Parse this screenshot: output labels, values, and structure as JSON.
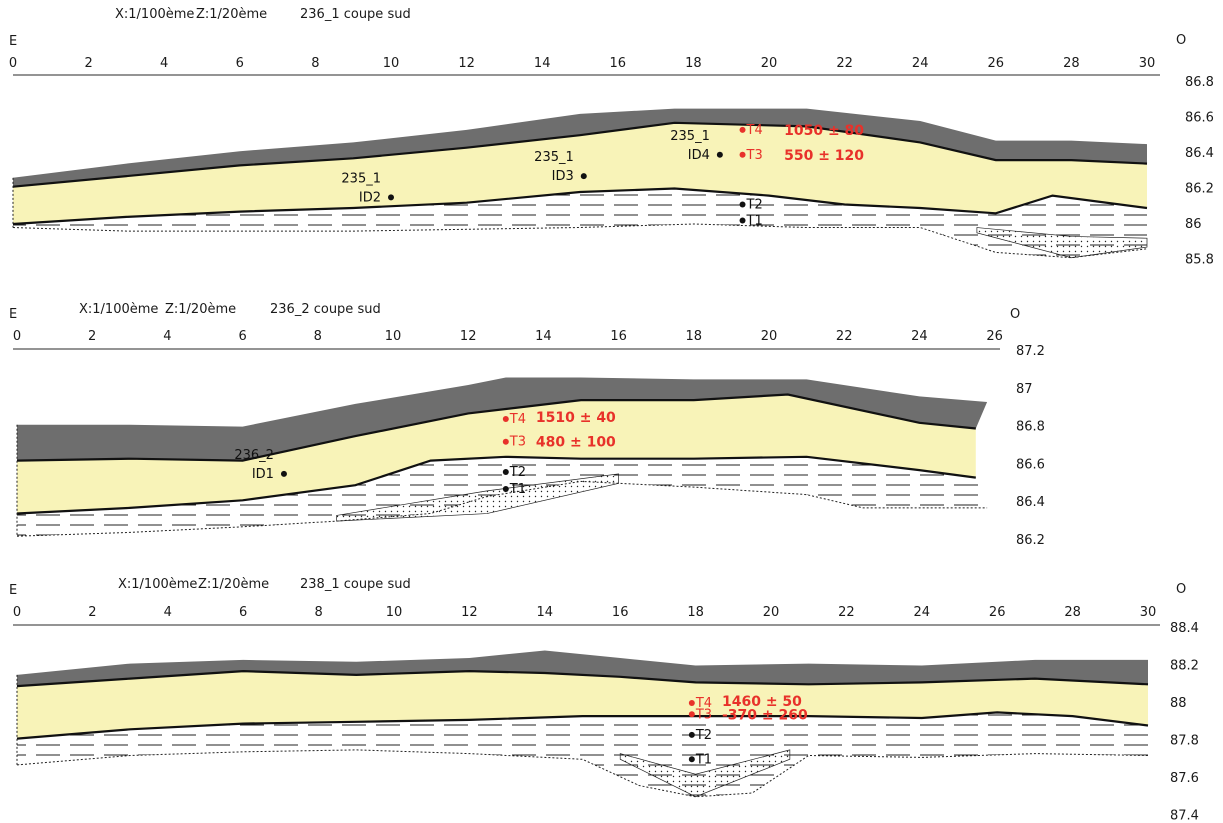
{
  "colors": {
    "topsoil": "#6e6e6e",
    "sand": "#f8f3b8",
    "outline": "#111111",
    "sample_black": "#111111",
    "sample_red": "#e8312a",
    "hatch": "#222222"
  },
  "panels": [
    {
      "id": "236_1",
      "header": {
        "x_scale": "X:1/100ème",
        "z_scale": "Z:1/20ème",
        "title": "236_1 coupe sud"
      },
      "orientation": {
        "left": "E",
        "right": "O"
      },
      "x_ticks": [
        "0",
        "2",
        "4",
        "6",
        "8",
        "10",
        "12",
        "14",
        "16",
        "18",
        "20",
        "22",
        "24",
        "26",
        "28",
        "30"
      ],
      "x_range": [
        0,
        30
      ],
      "z_range": [
        85.8,
        86.8
      ],
      "z_ticks": [
        "86.8",
        "86.6",
        "86.4",
        "86.2",
        "86",
        "85.8"
      ],
      "profile": {
        "surface_x": [
          0,
          3,
          6,
          9,
          12,
          15,
          17.5,
          21,
          24,
          26,
          28,
          30
        ],
        "surface_z": [
          86.26,
          86.34,
          86.41,
          86.46,
          86.53,
          86.62,
          86.65,
          86.65,
          86.58,
          86.47,
          86.47,
          86.45
        ],
        "topsoil_base_z": [
          86.21,
          86.27,
          86.33,
          86.37,
          86.43,
          86.5,
          86.57,
          86.55,
          86.46,
          86.36,
          86.36,
          86.34
        ],
        "sand_base_x": [
          0,
          3,
          6,
          9,
          12,
          15,
          17.5,
          20,
          22,
          24,
          26,
          27.5,
          30
        ],
        "sand_base_z": [
          86.0,
          86.04,
          86.07,
          86.09,
          86.12,
          86.18,
          86.2,
          86.16,
          86.11,
          86.09,
          86.06,
          86.16,
          86.09
        ],
        "bottom_x": [
          0,
          3,
          6,
          9,
          12,
          15,
          18,
          21,
          24,
          26,
          28,
          30
        ],
        "bottom_z": [
          85.98,
          85.96,
          85.96,
          85.96,
          85.97,
          85.98,
          86.0,
          85.98,
          85.98,
          85.84,
          85.81,
          85.86
        ]
      },
      "samples": [
        {
          "label": "235_1",
          "code": "ID2",
          "x": 10,
          "z": 86.15,
          "color": "black"
        },
        {
          "label": "235_1",
          "code": "ID3",
          "x": 15.1,
          "z": 86.27,
          "color": "black"
        },
        {
          "label": "235_1",
          "code": "ID4",
          "x": 18.7,
          "z": 86.39,
          "color": "black"
        },
        {
          "label": "T4",
          "x": 19.3,
          "z": 86.53,
          "color": "red"
        },
        {
          "label": "T3",
          "x": 19.3,
          "z": 86.39,
          "color": "red"
        },
        {
          "label": "T2",
          "x": 19.3,
          "z": 86.11,
          "color": "black"
        },
        {
          "label": "T1",
          "x": 19.3,
          "z": 86.02,
          "color": "black"
        }
      ],
      "dates": [
        {
          "text": "1050  ± 80",
          "x": 20.4,
          "z": 86.53
        },
        {
          "text": "550  ± 120",
          "x": 20.4,
          "z": 86.39
        }
      ]
    },
    {
      "id": "236_2",
      "header": {
        "x_scale": "X:1/100ème",
        "z_scale": "Z:1/20ème",
        "title": "236_2 coupe sud"
      },
      "orientation": {
        "left": "E",
        "right": "O"
      },
      "x_ticks": [
        "0",
        "2",
        "4",
        "6",
        "8",
        "10",
        "12",
        "14",
        "16",
        "18",
        "20",
        "22",
        "24",
        "26"
      ],
      "x_range": [
        0,
        26
      ],
      "z_range": [
        86.2,
        87.2
      ],
      "z_ticks": [
        "87.2",
        "87",
        "86.8",
        "86.6",
        "86.4",
        "86.2"
      ],
      "profile": {
        "surface_x": [
          0,
          3,
          6,
          9,
          12,
          13,
          15,
          18,
          21,
          24,
          25.8
        ],
        "surface_z": [
          86.81,
          86.81,
          86.8,
          86.92,
          87.02,
          87.06,
          87.06,
          87.05,
          87.05,
          86.96,
          86.93
        ],
        "topsoil_base_x": [
          0,
          3,
          6,
          9,
          12,
          15,
          18,
          20.5,
          24,
          25.5
        ],
        "topsoil_base_z": [
          86.62,
          86.63,
          86.62,
          86.75,
          86.87,
          86.94,
          86.94,
          86.97,
          86.82,
          86.79
        ],
        "sand_base_x": [
          0,
          3,
          6,
          9,
          11,
          13,
          15,
          18,
          21,
          24,
          25.5
        ],
        "sand_base_z": [
          86.34,
          86.37,
          86.41,
          86.49,
          86.62,
          86.64,
          86.63,
          86.63,
          86.64,
          86.57,
          86.53
        ],
        "bottom_x": [
          0,
          3,
          6,
          8.5,
          11,
          12.5,
          15,
          18,
          21,
          22.5,
          25.8
        ],
        "bottom_z": [
          86.22,
          86.24,
          86.27,
          86.3,
          86.34,
          86.43,
          86.51,
          86.48,
          86.44,
          86.37,
          86.37
        ]
      },
      "samples": [
        {
          "label": "236_2",
          "code": "ID1",
          "x": 7.1,
          "z": 86.55,
          "color": "black"
        },
        {
          "label": "T4",
          "x": 13,
          "z": 86.84,
          "color": "red"
        },
        {
          "label": "T3",
          "x": 13,
          "z": 86.72,
          "color": "red"
        },
        {
          "label": "T2",
          "x": 13,
          "z": 86.56,
          "color": "black"
        },
        {
          "label": "T1",
          "x": 13,
          "z": 86.47,
          "color": "black"
        }
      ],
      "dates": [
        {
          "text": "1510  ± 40",
          "x": 13.8,
          "z": 86.85
        },
        {
          "text": "480  ± 100",
          "x": 13.8,
          "z": 86.72
        }
      ]
    },
    {
      "id": "238_1",
      "header": {
        "x_scale": "X:1/100ème",
        "z_scale": "Z:1/20ème",
        "title": "238_1 coupe sud"
      },
      "orientation": {
        "left": "E",
        "right": "O"
      },
      "x_ticks": [
        "0",
        "2",
        "4",
        "6",
        "8",
        "10",
        "12",
        "14",
        "16",
        "18",
        "20",
        "22",
        "24",
        "26",
        "28",
        "30"
      ],
      "x_range": [
        0,
        30
      ],
      "z_range": [
        87.4,
        88.4
      ],
      "z_ticks": [
        "88.4",
        "88.2",
        "88",
        "87.8",
        "87.6",
        "87.4"
      ],
      "profile": {
        "surface_x": [
          0,
          3,
          6,
          9,
          12,
          14,
          16,
          18,
          21,
          24,
          27,
          30
        ],
        "surface_z": [
          88.15,
          88.21,
          88.23,
          88.22,
          88.24,
          88.28,
          88.24,
          88.2,
          88.21,
          88.2,
          88.23,
          88.23
        ],
        "topsoil_base_z": [
          88.09,
          88.13,
          88.17,
          88.15,
          88.17,
          88.16,
          88.14,
          88.11,
          88.1,
          88.11,
          88.13,
          88.1
        ],
        "sand_base_x": [
          0,
          3,
          6,
          9,
          12,
          15,
          18,
          21,
          24,
          26,
          28,
          30
        ],
        "sand_base_z": [
          87.81,
          87.86,
          87.89,
          87.9,
          87.91,
          87.93,
          87.93,
          87.93,
          87.92,
          87.95,
          87.93,
          87.88
        ],
        "bottom_x": [
          0,
          3,
          6,
          9,
          12,
          15,
          16.5,
          18,
          19.5,
          21,
          24,
          27,
          30
        ],
        "bottom_z": [
          87.67,
          87.72,
          87.74,
          87.75,
          87.73,
          87.7,
          87.56,
          87.5,
          87.52,
          87.72,
          87.71,
          87.73,
          87.72
        ]
      },
      "samples": [
        {
          "label": "T4",
          "x": 17.9,
          "z": 88.0,
          "color": "red"
        },
        {
          "label": "T3",
          "x": 17.9,
          "z": 87.94,
          "color": "red"
        },
        {
          "label": "T2",
          "x": 17.9,
          "z": 87.83,
          "color": "black"
        },
        {
          "label": "T1",
          "x": 17.9,
          "z": 87.7,
          "color": "black"
        }
      ],
      "dates": [
        {
          "text": "1460  ± 50",
          "x": 18.7,
          "z": 88.01
        },
        {
          "text": "-370  ± 260",
          "x": 18.7,
          "z": 87.94
        }
      ]
    }
  ]
}
